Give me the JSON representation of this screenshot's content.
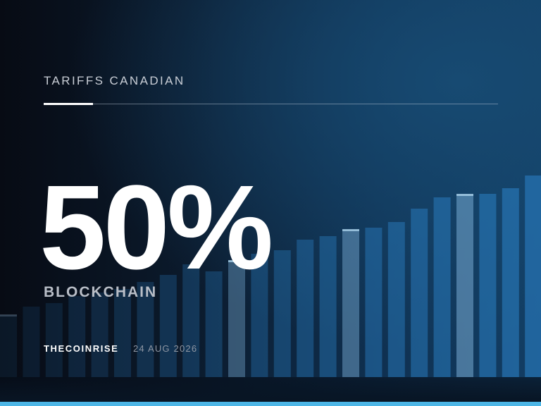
{
  "header": {
    "kicker": "TARIFFS CANADIAN"
  },
  "headline": {
    "value": "50%",
    "label": "BLOCKCHAIN"
  },
  "footer": {
    "source": "THECOINRISE",
    "date": "24 AUG 2026"
  }
}
